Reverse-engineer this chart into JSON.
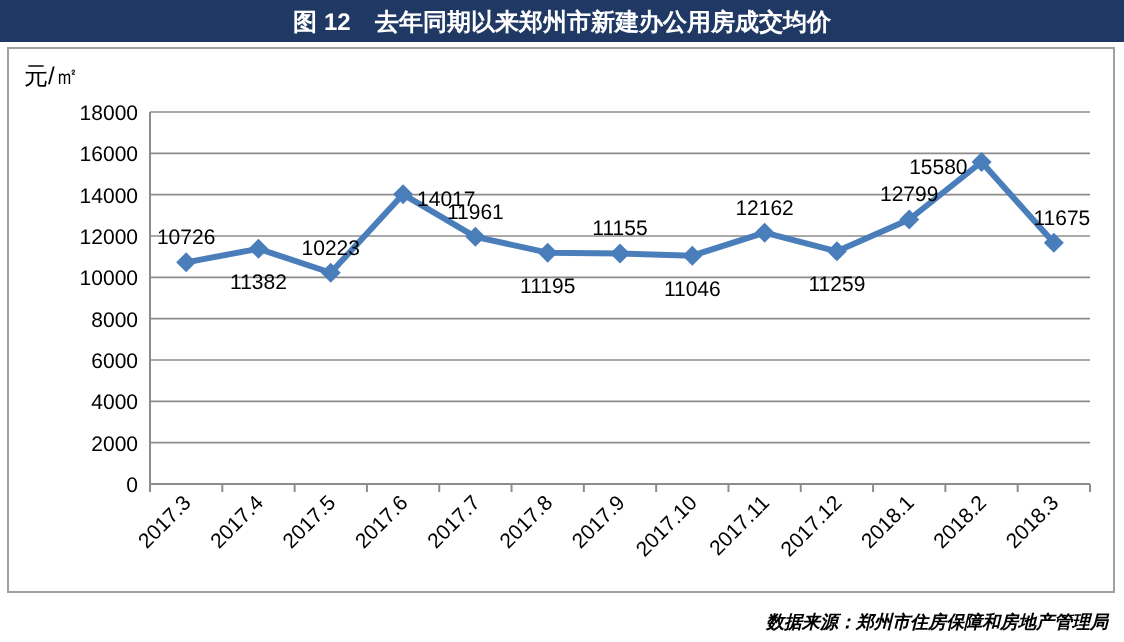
{
  "chart_data": {
    "type": "line",
    "title": "图 12　去年同期以来郑州市新建办公用房成交均价",
    "ylabel": "元/㎡",
    "categories": [
      "2017.3",
      "2017.4",
      "2017.5",
      "2017.6",
      "2017.7",
      "2017.8",
      "2017.9",
      "2017.10",
      "2017.11",
      "2017.12",
      "2018.1",
      "2018.2",
      "2018.3"
    ],
    "series": [
      {
        "color": "#4a7ebb",
        "values": [
          10726,
          11382,
          10223,
          14017,
          11961,
          11195,
          11155,
          11046,
          12162,
          11259,
          12799,
          15580,
          11675
        ]
      }
    ],
    "ylim": [
      0,
      18000
    ],
    "yticks": [
      0,
      2000,
      4000,
      6000,
      8000,
      10000,
      12000,
      14000,
      16000,
      18000
    ],
    "grid": "y",
    "marker": "diamond",
    "line_style": "solid",
    "data_labels": true,
    "annotations": [
      "数据来源：郑州市住房保障和房地产管理局"
    ]
  }
}
